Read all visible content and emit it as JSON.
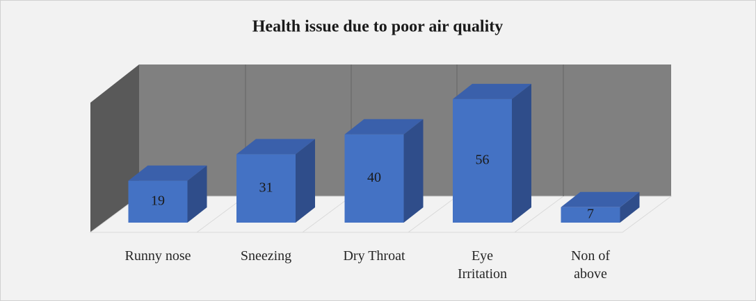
{
  "chart_data": {
    "type": "bar3d",
    "title": "Health issue due to poor air quality",
    "categories": [
      "Runny nose",
      "Sneezing",
      "Dry Throat",
      "Eye Irritation",
      "Non of above"
    ],
    "values": [
      19,
      31,
      40,
      56,
      7
    ],
    "color": "#4472c4"
  }
}
